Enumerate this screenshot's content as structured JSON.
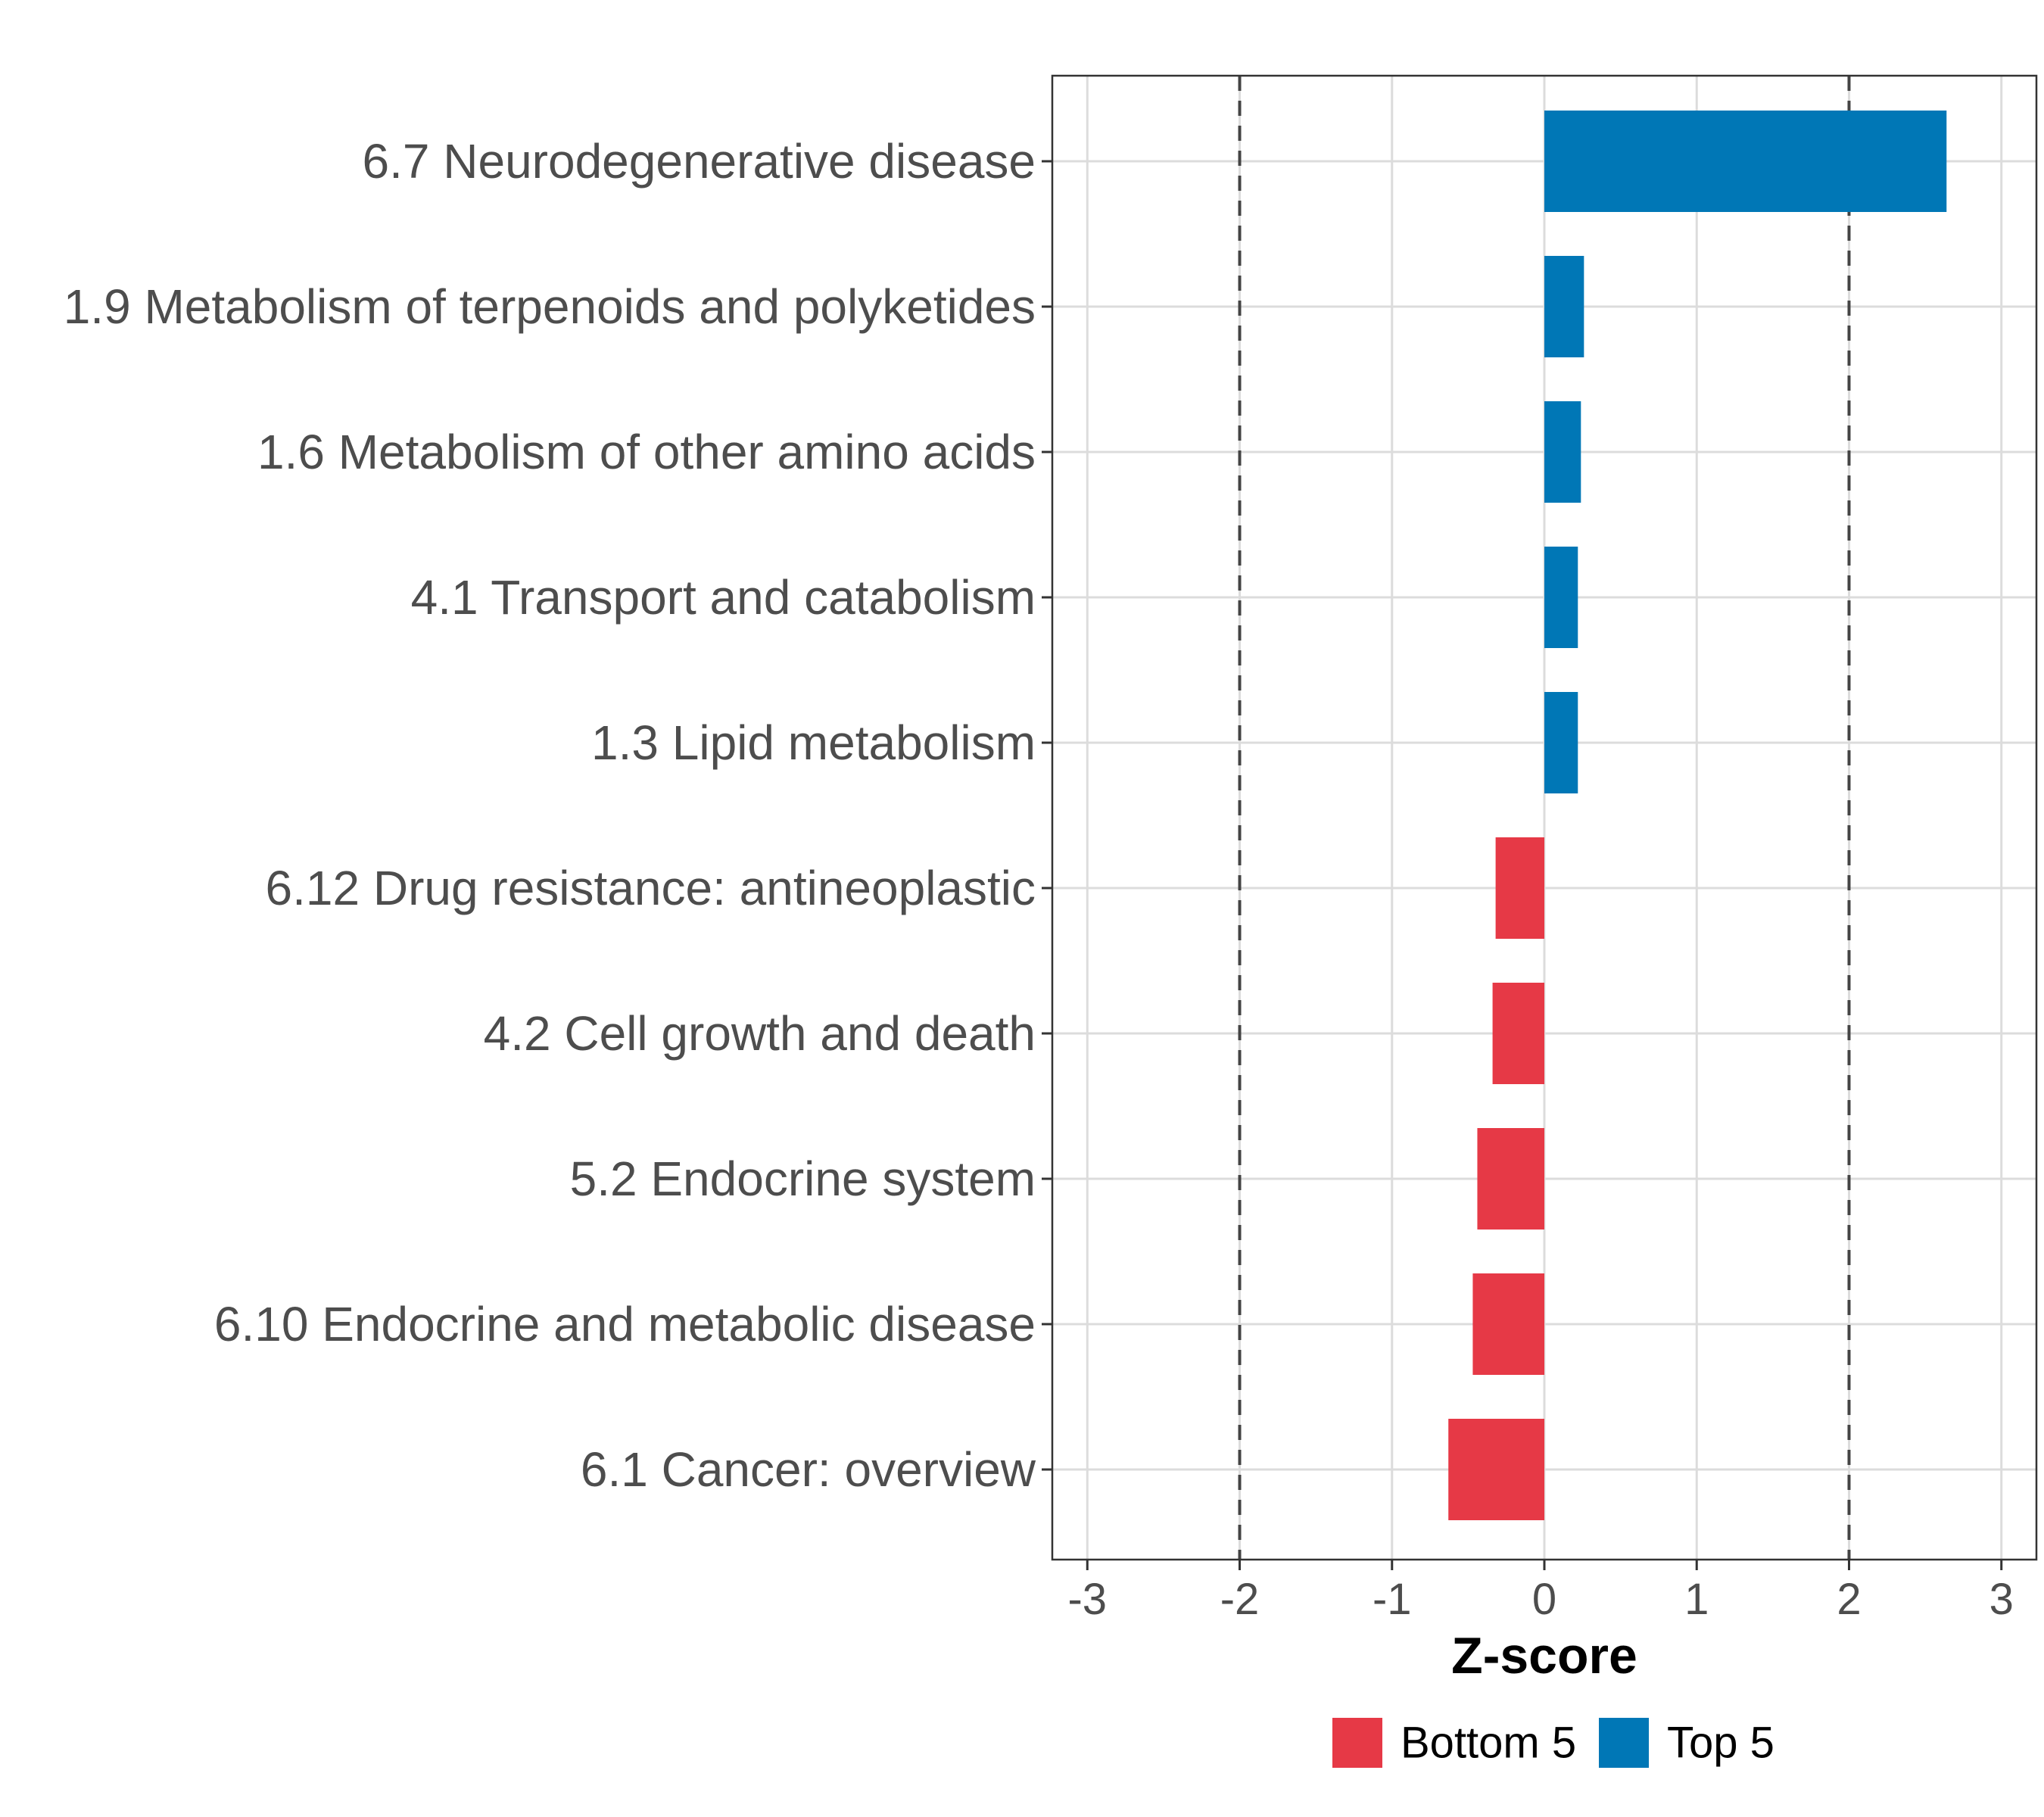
{
  "chart_data": {
    "type": "bar",
    "orientation": "horizontal",
    "title": "",
    "xlabel": "Z-score",
    "ylabel": "",
    "xlim": [
      -3.23,
      3.23
    ],
    "xticks": [
      -3,
      -2,
      -1,
      0,
      1,
      2,
      3
    ],
    "xtick_labels": [
      "-3",
      "-2",
      "-1",
      "0",
      "1",
      "2",
      "3"
    ],
    "grid": true,
    "reference_lines": [
      -2,
      2
    ],
    "categories": [
      "6.7 Neurodegenerative disease",
      "1.9 Metabolism of terpenoids and polyketides",
      "1.6 Metabolism of other amino acids",
      "4.1 Transport and catabolism",
      "1.3 Lipid metabolism",
      "6.12 Drug resistance: antineoplastic",
      "4.2 Cell growth and death",
      "5.2 Endocrine system",
      "6.10 Endocrine and metabolic disease",
      "6.1 Cancer: overview"
    ],
    "values": [
      2.64,
      0.26,
      0.24,
      0.22,
      0.22,
      -0.32,
      -0.34,
      -0.44,
      -0.47,
      -0.63
    ],
    "groups": [
      "Top 5",
      "Top 5",
      "Top 5",
      "Top 5",
      "Top 5",
      "Bottom 5",
      "Bottom 5",
      "Bottom 5",
      "Bottom 5",
      "Bottom 5"
    ],
    "legend": [
      {
        "name": "Bottom 5",
        "color": "#E63946"
      },
      {
        "name": "Top 5",
        "color": "#0077B6"
      }
    ],
    "legend_position": "bottom"
  }
}
